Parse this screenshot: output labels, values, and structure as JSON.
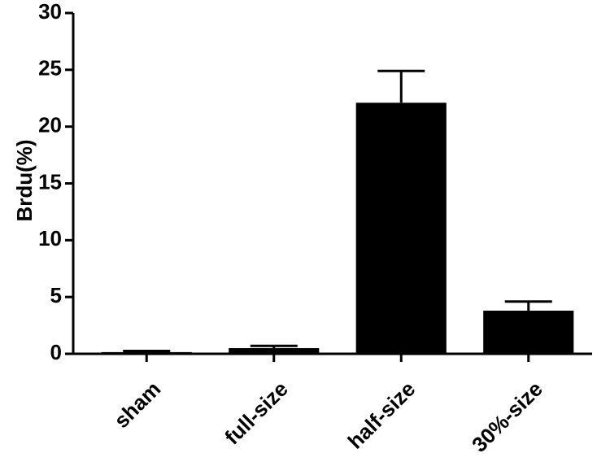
{
  "chart_data": {
    "type": "bar",
    "y_label": "Brdu(%)",
    "categories": [
      "sham",
      "full-size",
      "half-size",
      "30%-size"
    ],
    "values": [
      0.15,
      0.5,
      22.1,
      3.8
    ],
    "errors": [
      0.1,
      0.2,
      2.8,
      0.8
    ],
    "color": "#000000",
    "ylim": [
      0,
      30
    ],
    "yticks": [
      0,
      5,
      10,
      15,
      20,
      25,
      30
    ],
    "grid": false
  }
}
